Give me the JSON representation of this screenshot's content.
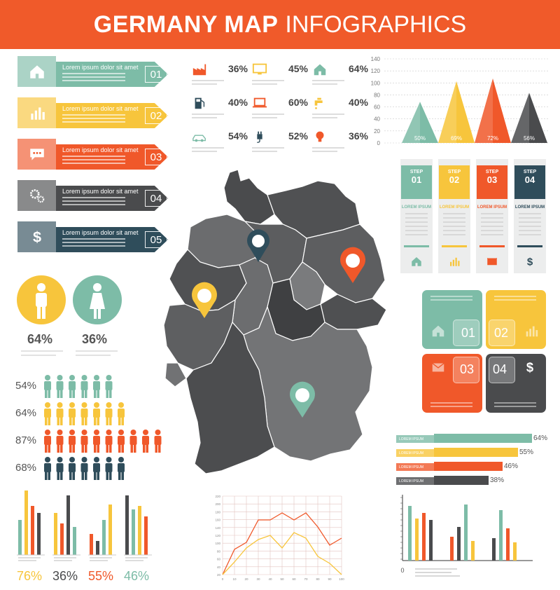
{
  "header": {
    "title_bold": "GERMANY MAP",
    "title_light": "INFOGRAPHICS"
  },
  "colors": {
    "orange": "#f05a2a",
    "teal": "#7dbca7",
    "yellow": "#f7c53c",
    "red": "#f0582a",
    "gray": "#4a4b4d",
    "navy": "#2f4d5b",
    "light_yellow": "#f8d56b"
  },
  "banners": [
    {
      "label": "Lorem ipsum dolor sit amet",
      "number": "01",
      "color": "#7dbca7",
      "icon": "home-icon"
    },
    {
      "label": "Lorem ipsum dolor sit amet",
      "number": "02",
      "color": "#f7c53c",
      "icon": "bar-chart-icon"
    },
    {
      "label": "Lorem ipsum dolor sit amet",
      "number": "03",
      "color": "#f0582a",
      "icon": "speech-bubble-icon"
    },
    {
      "label": "Lorem ipsum dolor sit amet",
      "number": "04",
      "color": "#4a4b4d",
      "icon": "gears-icon"
    },
    {
      "label": "Lorem ipsum dolor sit amet",
      "number": "05",
      "color": "#2f4d5b",
      "icon": "dollar-icon"
    }
  ],
  "stats": [
    {
      "icon": "factory-icon",
      "value": "36%"
    },
    {
      "icon": "monitor-icon",
      "value": "45%"
    },
    {
      "icon": "house-icon",
      "value": "64%"
    },
    {
      "icon": "fuel-pump-icon",
      "value": "40%"
    },
    {
      "icon": "laptop-icon",
      "value": "60%"
    },
    {
      "icon": "faucet-icon",
      "value": "40%"
    },
    {
      "icon": "car-icon",
      "value": "54%"
    },
    {
      "icon": "plug-icon",
      "value": "52%"
    },
    {
      "icon": "bulb-icon",
      "value": "36%"
    }
  ],
  "gender": {
    "male": "64%",
    "female": "36%"
  },
  "people_rows": [
    {
      "label": "54%",
      "count": 6,
      "color": "#7dbca7"
    },
    {
      "label": "64%",
      "count": 7,
      "color": "#f7c53c"
    },
    {
      "label": "87%",
      "count": 10,
      "color": "#f0582a"
    },
    {
      "label": "68%",
      "count": 7,
      "color": "#2f4d5b"
    }
  ],
  "triangle_chart": {
    "y_ticks": [
      "140",
      "120",
      "100",
      "80",
      "60",
      "40",
      "20",
      "0"
    ],
    "labels": [
      "50%",
      "69%",
      "72%",
      "56%"
    ]
  },
  "steps": [
    {
      "title": "STEP",
      "number": "01",
      "lorem": "LOREM IPSUM",
      "color": "#7dbca7",
      "icon": "home-icon"
    },
    {
      "title": "STEP",
      "number": "02",
      "lorem": "LOREM IPSUM",
      "color": "#f7c53c",
      "icon": "bar-chart-icon"
    },
    {
      "title": "STEP",
      "number": "03",
      "lorem": "LOREM IPSUM",
      "color": "#f0582a",
      "icon": "envelope-icon"
    },
    {
      "title": "STEP",
      "number": "04",
      "lorem": "LOREM IPSUM",
      "color": "#2f4d5b",
      "icon": "dollar-icon"
    }
  ],
  "tiles": [
    {
      "number": "01",
      "color": "#7dbca7"
    },
    {
      "number": "02",
      "color": "#f7c53c"
    },
    {
      "number": "03",
      "color": "#f0582a"
    },
    {
      "number": "04",
      "color": "#4a4b4d"
    }
  ],
  "hbars": [
    {
      "label": "LOREM IPSUM",
      "value": "64%",
      "color": "#7dbca7"
    },
    {
      "label": "LOREM IPSUM",
      "value": "55%",
      "color": "#f7c53c"
    },
    {
      "label": "LOREM IPSUM",
      "value": "46%",
      "color": "#f0582a"
    },
    {
      "label": "LOREM IPSUM",
      "value": "38%",
      "color": "#4a4b4d"
    }
  ],
  "bottom_bar_groups": [
    {
      "label": "76%",
      "color": "#f7c53c"
    },
    {
      "label": "36%",
      "color": "#4a4b4d"
    },
    {
      "label": "55%",
      "color": "#f0582a"
    },
    {
      "label": "46%",
      "color": "#7dbca7"
    }
  ],
  "line_chart": {
    "y_ticks": [
      "220",
      "200",
      "180",
      "160",
      "140",
      "120",
      "100",
      "80",
      "60",
      "40",
      "20"
    ],
    "x_ticks": [
      "0",
      "10",
      "20",
      "30",
      "40",
      "50",
      "60",
      "70",
      "80",
      "90",
      "100"
    ]
  },
  "bottom_right_chart": {
    "zero_label": "0"
  }
}
